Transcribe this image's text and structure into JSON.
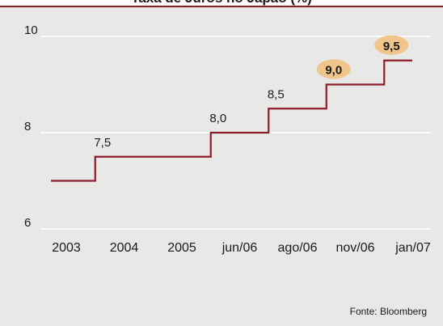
{
  "title": "Taxa de Juros no Japão (%)",
  "source": "Fonte:  Bloomberg",
  "colors": {
    "background": "#e8e8e6",
    "grid": "#ffffff",
    "line": "#8e1b2a",
    "highlight": "#f1c48a",
    "text": "#1a1a1a"
  },
  "chart_data": {
    "type": "line",
    "step": true,
    "categories": [
      "2003",
      "2004",
      "2005",
      "jun/06",
      "ago/06",
      "nov/06",
      "jan/07"
    ],
    "values": [
      7.0,
      7.5,
      7.5,
      8.0,
      8.5,
      9.0,
      9.5
    ],
    "data_labels": [
      "",
      "7,5",
      "",
      "8,0",
      "8,5",
      "9,0",
      "9,5"
    ],
    "highlighted_labels": [
      "9,0",
      "9,5"
    ],
    "y_ticks": [
      "6",
      "8",
      "10"
    ],
    "ylim": [
      6,
      10
    ],
    "grid": true,
    "legend": "none"
  }
}
